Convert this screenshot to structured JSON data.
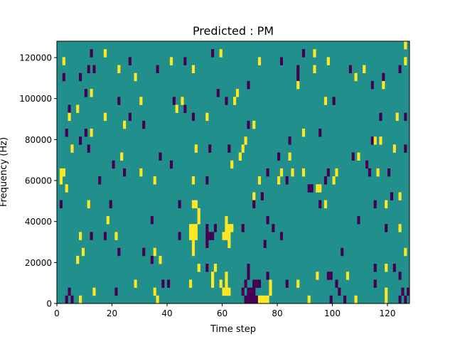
{
  "chart_data": {
    "type": "heatmap",
    "title": "Predicted : PM",
    "xlabel": "Time step",
    "ylabel": "Frequency (Hz)",
    "xlim": [
      0,
      128
    ],
    "ylim": [
      0,
      128000
    ],
    "n_time_steps": 128,
    "n_freq_bins": 33,
    "xticks": [
      0,
      20,
      40,
      60,
      80,
      100,
      120
    ],
    "yticks": [
      0,
      20000,
      40000,
      60000,
      80000,
      100000,
      120000
    ],
    "colors": {
      "background_value_0": "#21908d",
      "value_1": "#fde725",
      "value_neg1": "#440154"
    },
    "grid": false,
    "cells_format": "[time_step, freq_bin_from_bottom, value]",
    "cells": [
      [
        126,
        32,
        1
      ],
      [
        12,
        31,
        -1
      ],
      [
        17,
        31,
        1
      ],
      [
        56,
        31,
        -1
      ],
      [
        59,
        31,
        1
      ],
      [
        89,
        31,
        -1
      ],
      [
        93,
        31,
        1
      ],
      [
        2,
        30,
        1
      ],
      [
        26,
        30,
        -1
      ],
      [
        41,
        30,
        1
      ],
      [
        46,
        30,
        -1
      ],
      [
        73,
        30,
        1
      ],
      [
        81,
        30,
        -1
      ],
      [
        98,
        30,
        1
      ],
      [
        126,
        30,
        1
      ],
      [
        11,
        29,
        -1
      ],
      [
        13,
        29,
        -1
      ],
      [
        22,
        29,
        1
      ],
      [
        36,
        29,
        -1
      ],
      [
        49,
        29,
        1
      ],
      [
        87,
        29,
        -1
      ],
      [
        93,
        29,
        1
      ],
      [
        106,
        29,
        -1
      ],
      [
        111,
        29,
        1
      ],
      [
        124,
        29,
        -1
      ],
      [
        2,
        28,
        -1
      ],
      [
        8,
        28,
        -1
      ],
      [
        28,
        28,
        1
      ],
      [
        87,
        28,
        -1
      ],
      [
        108,
        28,
        1
      ],
      [
        118,
        28,
        -1
      ],
      [
        69,
        27,
        -1
      ],
      [
        87,
        27,
        1
      ],
      [
        114,
        27,
        -1
      ],
      [
        118,
        27,
        1
      ],
      [
        10,
        26,
        -1
      ],
      [
        12,
        26,
        1
      ],
      [
        58,
        26,
        -1
      ],
      [
        65,
        26,
        1
      ],
      [
        22,
        25,
        -1
      ],
      [
        30,
        25,
        1
      ],
      [
        42,
        25,
        -1
      ],
      [
        45,
        25,
        1
      ],
      [
        61,
        25,
        -1
      ],
      [
        64,
        25,
        1
      ],
      [
        97,
        25,
        1
      ],
      [
        100,
        25,
        -1
      ],
      [
        4,
        24,
        -1
      ],
      [
        7,
        24,
        1
      ],
      [
        43,
        24,
        1
      ],
      [
        46,
        24,
        -1
      ],
      [
        4,
        23,
        1
      ],
      [
        17,
        23,
        1
      ],
      [
        26,
        23,
        -1
      ],
      [
        49,
        23,
        -1
      ],
      [
        54,
        23,
        1
      ],
      [
        117,
        23,
        -1
      ],
      [
        123,
        23,
        1
      ],
      [
        126,
        23,
        -1
      ],
      [
        24,
        22,
        1
      ],
      [
        31,
        22,
        -1
      ],
      [
        69,
        22,
        -1
      ],
      [
        71,
        22,
        1
      ],
      [
        3,
        21,
        -1
      ],
      [
        10,
        21,
        -1
      ],
      [
        12,
        21,
        1
      ],
      [
        89,
        21,
        1
      ],
      [
        95,
        21,
        -1
      ],
      [
        8,
        20,
        -1
      ],
      [
        68,
        20,
        1
      ],
      [
        84,
        20,
        -1
      ],
      [
        114,
        20,
        -1
      ],
      [
        115,
        20,
        1
      ],
      [
        117,
        20,
        1
      ],
      [
        5,
        19,
        1
      ],
      [
        11,
        19,
        -1
      ],
      [
        50,
        19,
        1
      ],
      [
        55,
        19,
        -1
      ],
      [
        62,
        19,
        -1
      ],
      [
        67,
        19,
        1
      ],
      [
        122,
        19,
        1
      ],
      [
        126,
        19,
        -1
      ],
      [
        23,
        18,
        1
      ],
      [
        37,
        18,
        -1
      ],
      [
        66,
        18,
        1
      ],
      [
        80,
        18,
        -1
      ],
      [
        84,
        18,
        1
      ],
      [
        107,
        18,
        -1
      ],
      [
        109,
        18,
        1
      ],
      [
        20,
        17,
        -1
      ],
      [
        41,
        17,
        -1
      ],
      [
        63,
        17,
        1
      ],
      [
        112,
        17,
        -1
      ],
      [
        1,
        16,
        1
      ],
      [
        2,
        16,
        1
      ],
      [
        24,
        16,
        -1
      ],
      [
        30,
        16,
        1
      ],
      [
        76,
        16,
        -1
      ],
      [
        81,
        16,
        1
      ],
      [
        85,
        16,
        1
      ],
      [
        89,
        16,
        1
      ],
      [
        98,
        16,
        -1
      ],
      [
        101,
        16,
        1
      ],
      [
        113,
        16,
        -1
      ],
      [
        116,
        16,
        1
      ],
      [
        120,
        16,
        -1
      ],
      [
        1,
        15,
        1
      ],
      [
        15,
        15,
        -1
      ],
      [
        35,
        15,
        1
      ],
      [
        49,
        15,
        1
      ],
      [
        54,
        15,
        -1
      ],
      [
        73,
        15,
        1
      ],
      [
        80,
        15,
        1
      ],
      [
        83,
        15,
        -1
      ],
      [
        97,
        15,
        -1
      ],
      [
        100,
        15,
        1
      ],
      [
        3,
        14,
        1
      ],
      [
        91,
        14,
        -1
      ],
      [
        92,
        14,
        -1
      ],
      [
        94,
        14,
        1
      ],
      [
        95,
        14,
        1
      ],
      [
        71,
        13,
        1
      ],
      [
        74,
        13,
        -1
      ],
      [
        121,
        13,
        -1
      ],
      [
        124,
        13,
        1
      ],
      [
        1,
        12,
        -1
      ],
      [
        11,
        12,
        1
      ],
      [
        19,
        12,
        -1
      ],
      [
        44,
        12,
        -1
      ],
      [
        49,
        12,
        1
      ],
      [
        50,
        12,
        1
      ],
      [
        71,
        12,
        -1
      ],
      [
        95,
        12,
        -1
      ],
      [
        97,
        12,
        1
      ],
      [
        115,
        12,
        -1
      ],
      [
        119,
        12,
        1
      ],
      [
        51,
        11,
        1
      ],
      [
        18,
        10,
        1
      ],
      [
        34,
        10,
        -1
      ],
      [
        51,
        10,
        1
      ],
      [
        61,
        10,
        1
      ],
      [
        76,
        10,
        -1
      ],
      [
        109,
        10,
        -1
      ],
      [
        48,
        9,
        1
      ],
      [
        49,
        9,
        1
      ],
      [
        50,
        9,
        1
      ],
      [
        54,
        9,
        -1
      ],
      [
        57,
        9,
        -1
      ],
      [
        61,
        9,
        1
      ],
      [
        62,
        9,
        1
      ],
      [
        63,
        9,
        1
      ],
      [
        67,
        9,
        -1
      ],
      [
        78,
        9,
        -1
      ],
      [
        119,
        9,
        -1
      ],
      [
        124,
        9,
        1
      ],
      [
        8,
        8,
        1
      ],
      [
        12,
        8,
        -1
      ],
      [
        17,
        8,
        -1
      ],
      [
        21,
        8,
        1
      ],
      [
        44,
        8,
        -1
      ],
      [
        48,
        8,
        1
      ],
      [
        49,
        8,
        1
      ],
      [
        50,
        8,
        1
      ],
      [
        54,
        8,
        -1
      ],
      [
        55,
        8,
        -1
      ],
      [
        56,
        8,
        -1
      ],
      [
        60,
        8,
        1
      ],
      [
        61,
        8,
        1
      ],
      [
        62,
        8,
        1
      ],
      [
        81,
        8,
        -1
      ],
      [
        49,
        7,
        1
      ],
      [
        54,
        7,
        -1
      ],
      [
        62,
        7,
        1
      ],
      [
        75,
        7,
        -1
      ],
      [
        9,
        6,
        1
      ],
      [
        22,
        6,
        -1
      ],
      [
        31,
        6,
        -1
      ],
      [
        35,
        6,
        1
      ],
      [
        49,
        6,
        1
      ],
      [
        103,
        6,
        -1
      ],
      [
        126,
        6,
        1
      ],
      [
        7,
        5,
        1
      ],
      [
        34,
        5,
        -1
      ],
      [
        37,
        5,
        1
      ],
      [
        51,
        4,
        1
      ],
      [
        54,
        4,
        -1
      ],
      [
        57,
        4,
        1
      ],
      [
        69,
        4,
        -1
      ],
      [
        115,
        4,
        -1
      ],
      [
        119,
        4,
        1
      ],
      [
        122,
        4,
        -1
      ],
      [
        56,
        3,
        1
      ],
      [
        61,
        3,
        1
      ],
      [
        69,
        3,
        -1
      ],
      [
        76,
        3,
        -1
      ],
      [
        94,
        3,
        1
      ],
      [
        98,
        3,
        -1
      ],
      [
        99,
        3,
        -1
      ],
      [
        105,
        3,
        1
      ],
      [
        124,
        3,
        -1
      ],
      [
        28,
        2,
        1
      ],
      [
        38,
        2,
        -1
      ],
      [
        40,
        2,
        -1
      ],
      [
        48,
        2,
        1
      ],
      [
        56,
        2,
        1
      ],
      [
        59,
        2,
        1
      ],
      [
        61,
        2,
        1
      ],
      [
        68,
        2,
        -1
      ],
      [
        71,
        2,
        -1
      ],
      [
        72,
        2,
        -1
      ],
      [
        73,
        2,
        -1
      ],
      [
        77,
        2,
        1
      ],
      [
        83,
        2,
        -1
      ],
      [
        87,
        2,
        1
      ],
      [
        101,
        2,
        -1
      ],
      [
        115,
        2,
        -1
      ],
      [
        4,
        1,
        -1
      ],
      [
        13,
        1,
        1
      ],
      [
        21,
        1,
        -1
      ],
      [
        35,
        1,
        1
      ],
      [
        60,
        1,
        1
      ],
      [
        61,
        1,
        1
      ],
      [
        62,
        1,
        1
      ],
      [
        67,
        1,
        -1
      ],
      [
        69,
        1,
        -1
      ],
      [
        70,
        1,
        -1
      ],
      [
        71,
        1,
        -1
      ],
      [
        77,
        1,
        1
      ],
      [
        102,
        1,
        -1
      ],
      [
        119,
        1,
        1
      ],
      [
        125,
        1,
        -1
      ],
      [
        127,
        1,
        -1
      ],
      [
        3,
        0,
        -1
      ],
      [
        5,
        0,
        -1
      ],
      [
        8,
        0,
        1
      ],
      [
        36,
        0,
        1
      ],
      [
        68,
        0,
        -1
      ],
      [
        69,
        0,
        -1
      ],
      [
        70,
        0,
        -1
      ],
      [
        71,
        0,
        -1
      ],
      [
        72,
        0,
        -1
      ],
      [
        73,
        0,
        1
      ],
      [
        74,
        0,
        1
      ],
      [
        75,
        0,
        1
      ],
      [
        76,
        0,
        1
      ],
      [
        91,
        0,
        1
      ],
      [
        99,
        0,
        -1
      ],
      [
        104,
        0,
        -1
      ],
      [
        108,
        0,
        1
      ],
      [
        119,
        0,
        1
      ],
      [
        124,
        0,
        -1
      ],
      [
        126,
        0,
        -1
      ]
    ]
  }
}
